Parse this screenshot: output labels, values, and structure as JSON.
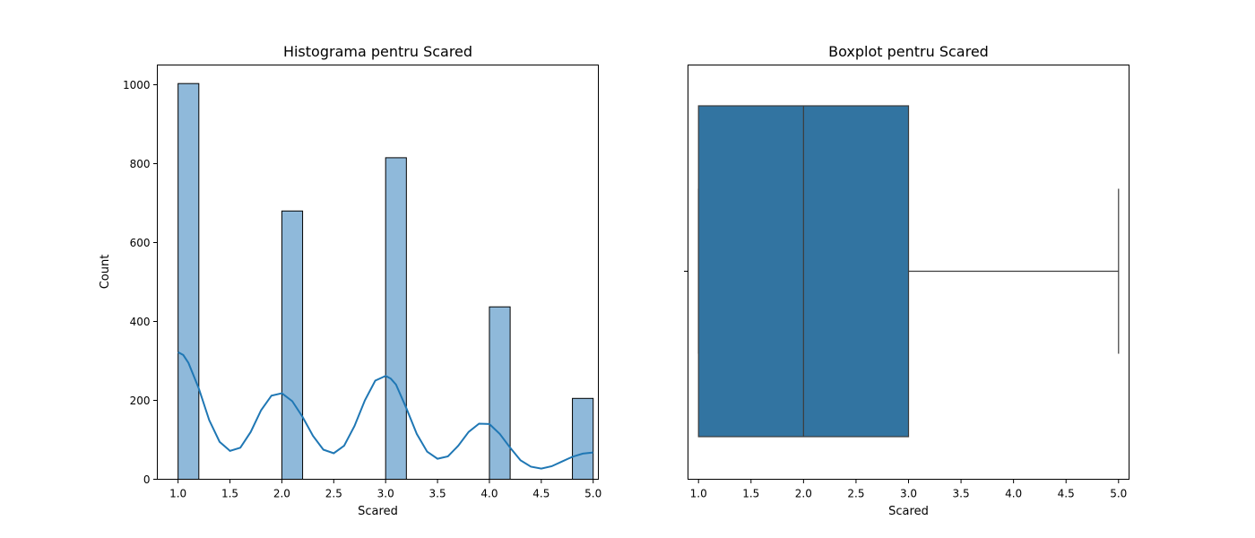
{
  "chart_data": [
    {
      "type": "bar",
      "title": "Histograma pentru Scared",
      "xlabel": "Scared",
      "ylabel": "Count",
      "xlim": [
        0.8,
        5.05
      ],
      "ylim": [
        0,
        1050
      ],
      "xticks": [
        "1.0",
        "1.5",
        "2.0",
        "2.5",
        "3.0",
        "3.5",
        "4.0",
        "4.5",
        "5.0"
      ],
      "yticks": [
        "0",
        "200",
        "400",
        "600",
        "800",
        "1000"
      ],
      "bar_color": "#8fb9da",
      "edge_color": "#000000",
      "line_color": "#1f77b4",
      "bars": [
        {
          "x_start": 1.0,
          "x_end": 1.2,
          "count": 1003
        },
        {
          "x_start": 2.0,
          "x_end": 2.2,
          "count": 680
        },
        {
          "x_start": 3.0,
          "x_end": 3.2,
          "count": 815
        },
        {
          "x_start": 4.0,
          "x_end": 4.2,
          "count": 437
        },
        {
          "x_start": 4.8,
          "x_end": 5.0,
          "count": 205
        }
      ],
      "kde": {
        "x": [
          1.0,
          1.05,
          1.1,
          1.2,
          1.3,
          1.4,
          1.5,
          1.6,
          1.7,
          1.8,
          1.9,
          2.0,
          2.1,
          2.2,
          2.3,
          2.4,
          2.5,
          2.6,
          2.7,
          2.8,
          2.9,
          3.0,
          3.05,
          3.1,
          3.2,
          3.3,
          3.4,
          3.5,
          3.6,
          3.7,
          3.8,
          3.9,
          4.0,
          4.1,
          4.2,
          4.3,
          4.4,
          4.5,
          4.6,
          4.7,
          4.8,
          4.9,
          5.0
        ],
        "y": [
          322,
          315,
          295,
          230,
          150,
          95,
          72,
          80,
          120,
          175,
          212,
          218,
          198,
          158,
          110,
          75,
          66,
          85,
          135,
          200,
          250,
          262,
          255,
          240,
          180,
          115,
          70,
          52,
          58,
          85,
          120,
          141,
          140,
          115,
          80,
          48,
          32,
          27,
          33,
          45,
          57,
          65,
          68
        ]
      }
    },
    {
      "type": "box",
      "title": "Boxplot pentru Scared",
      "xlabel": "Scared",
      "xlim": [
        0.9,
        5.1
      ],
      "xticks": [
        "1.0",
        "1.5",
        "2.0",
        "2.5",
        "3.0",
        "3.5",
        "4.0",
        "4.5",
        "5.0"
      ],
      "box_color": "#3274a1",
      "line_color": "#3d3d3d",
      "whisker_low": 1.0,
      "q1": 1.0,
      "median": 2.0,
      "q3": 3.0,
      "whisker_high": 5.0
    }
  ]
}
